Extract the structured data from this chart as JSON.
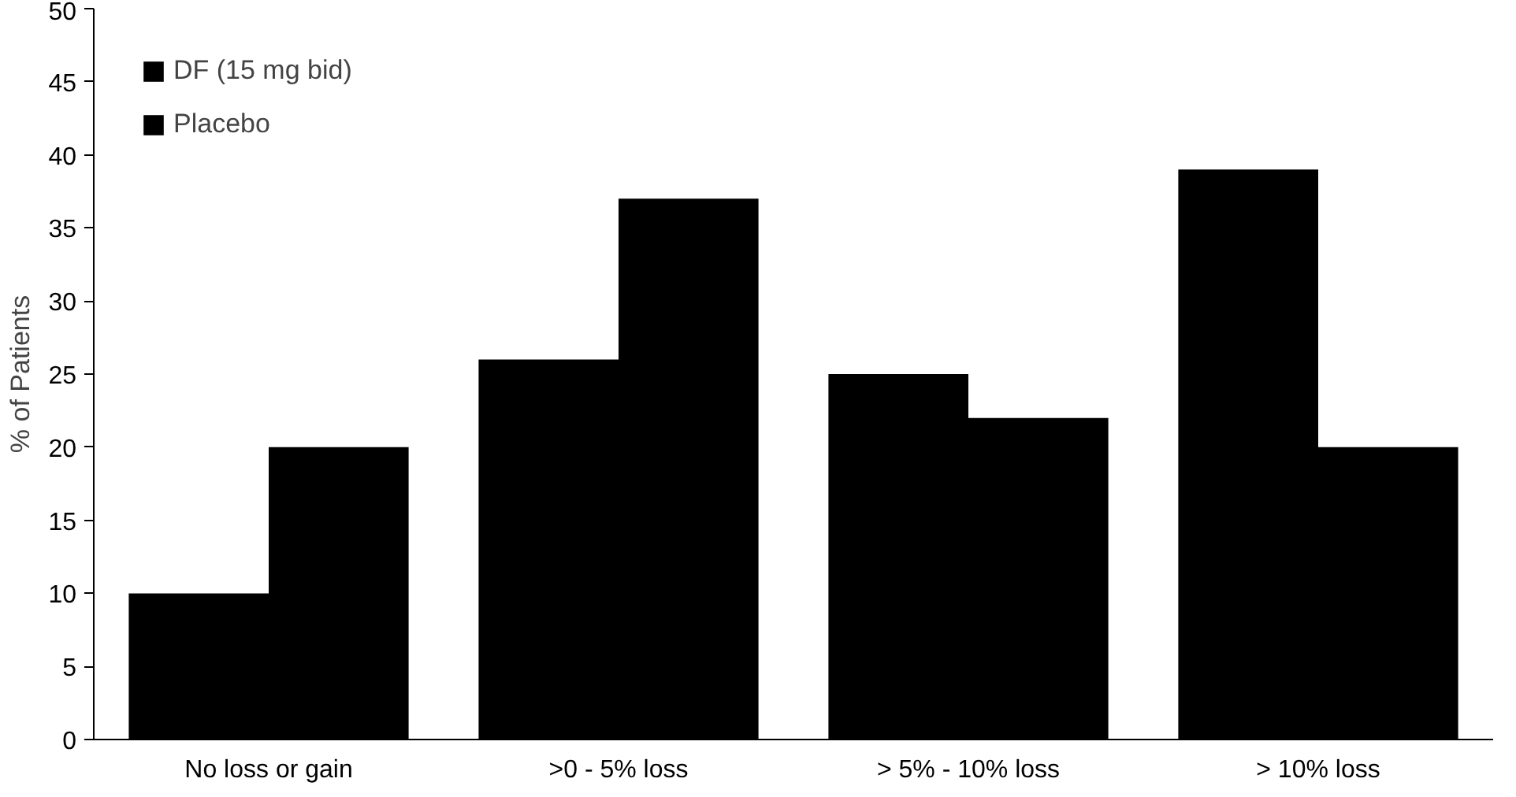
{
  "chart_data": {
    "type": "bar",
    "ylabel": "% of Patients",
    "categories": [
      "No loss or gain",
      ">0 - 5% loss",
      "> 5% - 10% loss",
      "> 10% loss"
    ],
    "series": [
      {
        "name": "DF (15 mg bid)",
        "color": "#000000",
        "values": [
          10,
          26,
          25,
          39
        ]
      },
      {
        "name": "Placebo",
        "color": "#000000",
        "values": [
          20,
          37,
          22,
          20
        ]
      }
    ],
    "ylim": [
      0,
      50
    ],
    "yticks": [
      0,
      5,
      10,
      15,
      20,
      25,
      30,
      35,
      40,
      45,
      50
    ],
    "grid": false,
    "legend": "top left"
  }
}
